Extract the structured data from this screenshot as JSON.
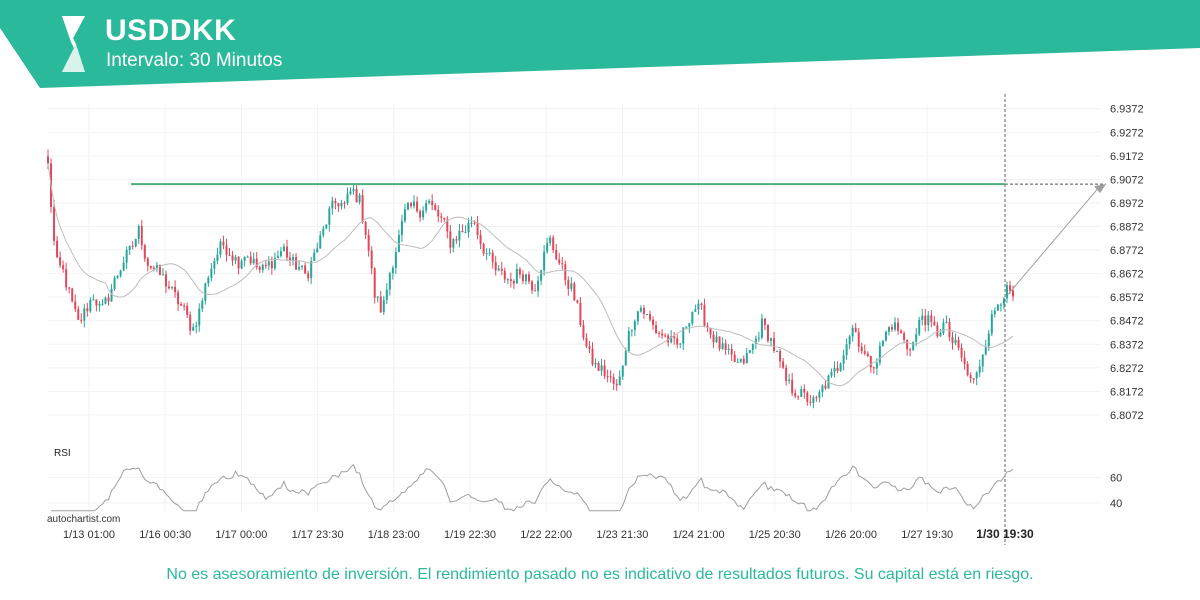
{
  "header": {
    "title": "USDDKK",
    "subtitle": "Intervalo: 30 Minutos"
  },
  "colors": {
    "brand": "#2bb99b",
    "brand_dark": "#1f9c80",
    "up_candle": "#26a69a",
    "down_candle": "#e0485a",
    "resistance": "#4caf7d",
    "moving_average": "#bdbdbd",
    "rsi": "#9e9e9e",
    "forecast": "#9e9e9e"
  },
  "watermark": "autochartist.com",
  "disclaimer": "No es asesoramiento de inversión. El rendimiento pasado no es indicativo de resultados futuros. Su capital está en riesgo.",
  "chart_data": {
    "type": "candlestick",
    "y_ticks": [
      "6.9372",
      "6.9272",
      "6.9172",
      "6.9072",
      "6.8972",
      "6.8872",
      "6.8772",
      "6.8672",
      "6.8572",
      "6.8472",
      "6.8372",
      "6.8272",
      "6.8172",
      "6.8072"
    ],
    "y_range": [
      6.8042,
      6.9392
    ],
    "x_ticks": [
      "1/13 01:00",
      "1/16 00:30",
      "1/17 00:00",
      "1/17 23:30",
      "1/18 23:00",
      "1/19 22:30",
      "1/22 22:00",
      "1/23 21:30",
      "1/24 21:00",
      "1/25 20:30",
      "1/26 20:00",
      "1/27 19:30"
    ],
    "current_time_label": "1/30 19:30",
    "resistance_level": 6.9052,
    "forecast_target": 6.9052,
    "price_path": [
      6.913,
      6.872,
      6.868,
      6.856,
      6.846,
      6.852,
      6.858,
      6.851,
      6.858,
      6.866,
      6.873,
      6.878,
      6.886,
      6.872,
      6.869,
      6.866,
      6.861,
      6.856,
      6.851,
      6.843,
      6.852,
      6.866,
      6.874,
      6.88,
      6.876,
      6.872,
      6.876,
      6.872,
      6.868,
      6.871,
      6.874,
      6.878,
      6.872,
      6.87,
      6.866,
      6.875,
      6.883,
      6.893,
      6.898,
      6.896,
      6.903,
      6.898,
      6.882,
      6.858,
      6.851,
      6.868,
      6.88,
      6.893,
      6.896,
      6.894,
      6.898,
      6.893,
      6.889,
      6.88,
      6.884,
      6.886,
      6.891,
      6.88,
      6.874,
      6.868,
      6.866,
      6.864,
      6.868,
      6.866,
      6.861,
      6.872,
      6.882,
      6.874,
      6.866,
      6.86,
      6.848,
      6.834,
      6.828,
      6.826,
      6.822,
      6.818,
      6.836,
      6.848,
      6.853,
      6.848,
      6.843,
      6.841,
      6.838,
      6.836,
      6.846,
      6.853,
      6.851,
      6.843,
      6.838,
      6.834,
      6.831,
      6.828,
      6.832,
      6.838,
      6.846,
      6.84,
      6.832,
      6.822,
      6.818,
      6.816,
      6.814,
      6.812,
      6.819,
      6.823,
      6.828,
      6.838,
      6.845,
      6.836,
      6.829,
      6.83,
      6.84,
      6.846,
      6.843,
      6.836,
      6.838,
      6.85,
      6.846,
      6.842,
      6.846,
      6.838,
      6.834,
      6.824,
      6.821,
      6.834,
      6.846,
      6.855,
      6.86,
      6.857
    ],
    "rsi": {
      "label": "RSI",
      "ticks": [
        "60",
        "40"
      ],
      "range": [
        33,
        72
      ]
    }
  }
}
